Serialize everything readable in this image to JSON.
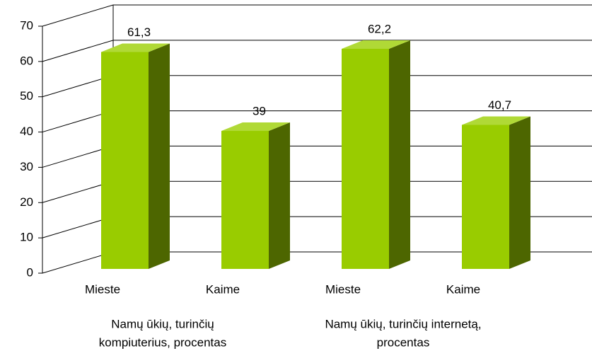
{
  "chart_data": {
    "type": "bar3d",
    "categories": [
      "Mieste",
      "Kaime",
      "Mieste",
      "Kaime"
    ],
    "values": [
      61.3,
      39,
      62.2,
      40.7
    ],
    "value_labels": [
      "61,3",
      "39",
      "62,2",
      "40,7"
    ],
    "group_labels": [
      [
        "Namų ūkių, turinčių",
        "kompiuterius, procentas"
      ],
      [
        "Namų ūkių, turinčių internetą,",
        "procentas"
      ]
    ],
    "colors": {
      "front": "#99cc00",
      "side": "#4d6600",
      "top": "#b0d936"
    },
    "ylim": [
      0,
      70
    ],
    "yticks": [
      0,
      10,
      20,
      30,
      40,
      50,
      60,
      70
    ],
    "grid": true
  }
}
